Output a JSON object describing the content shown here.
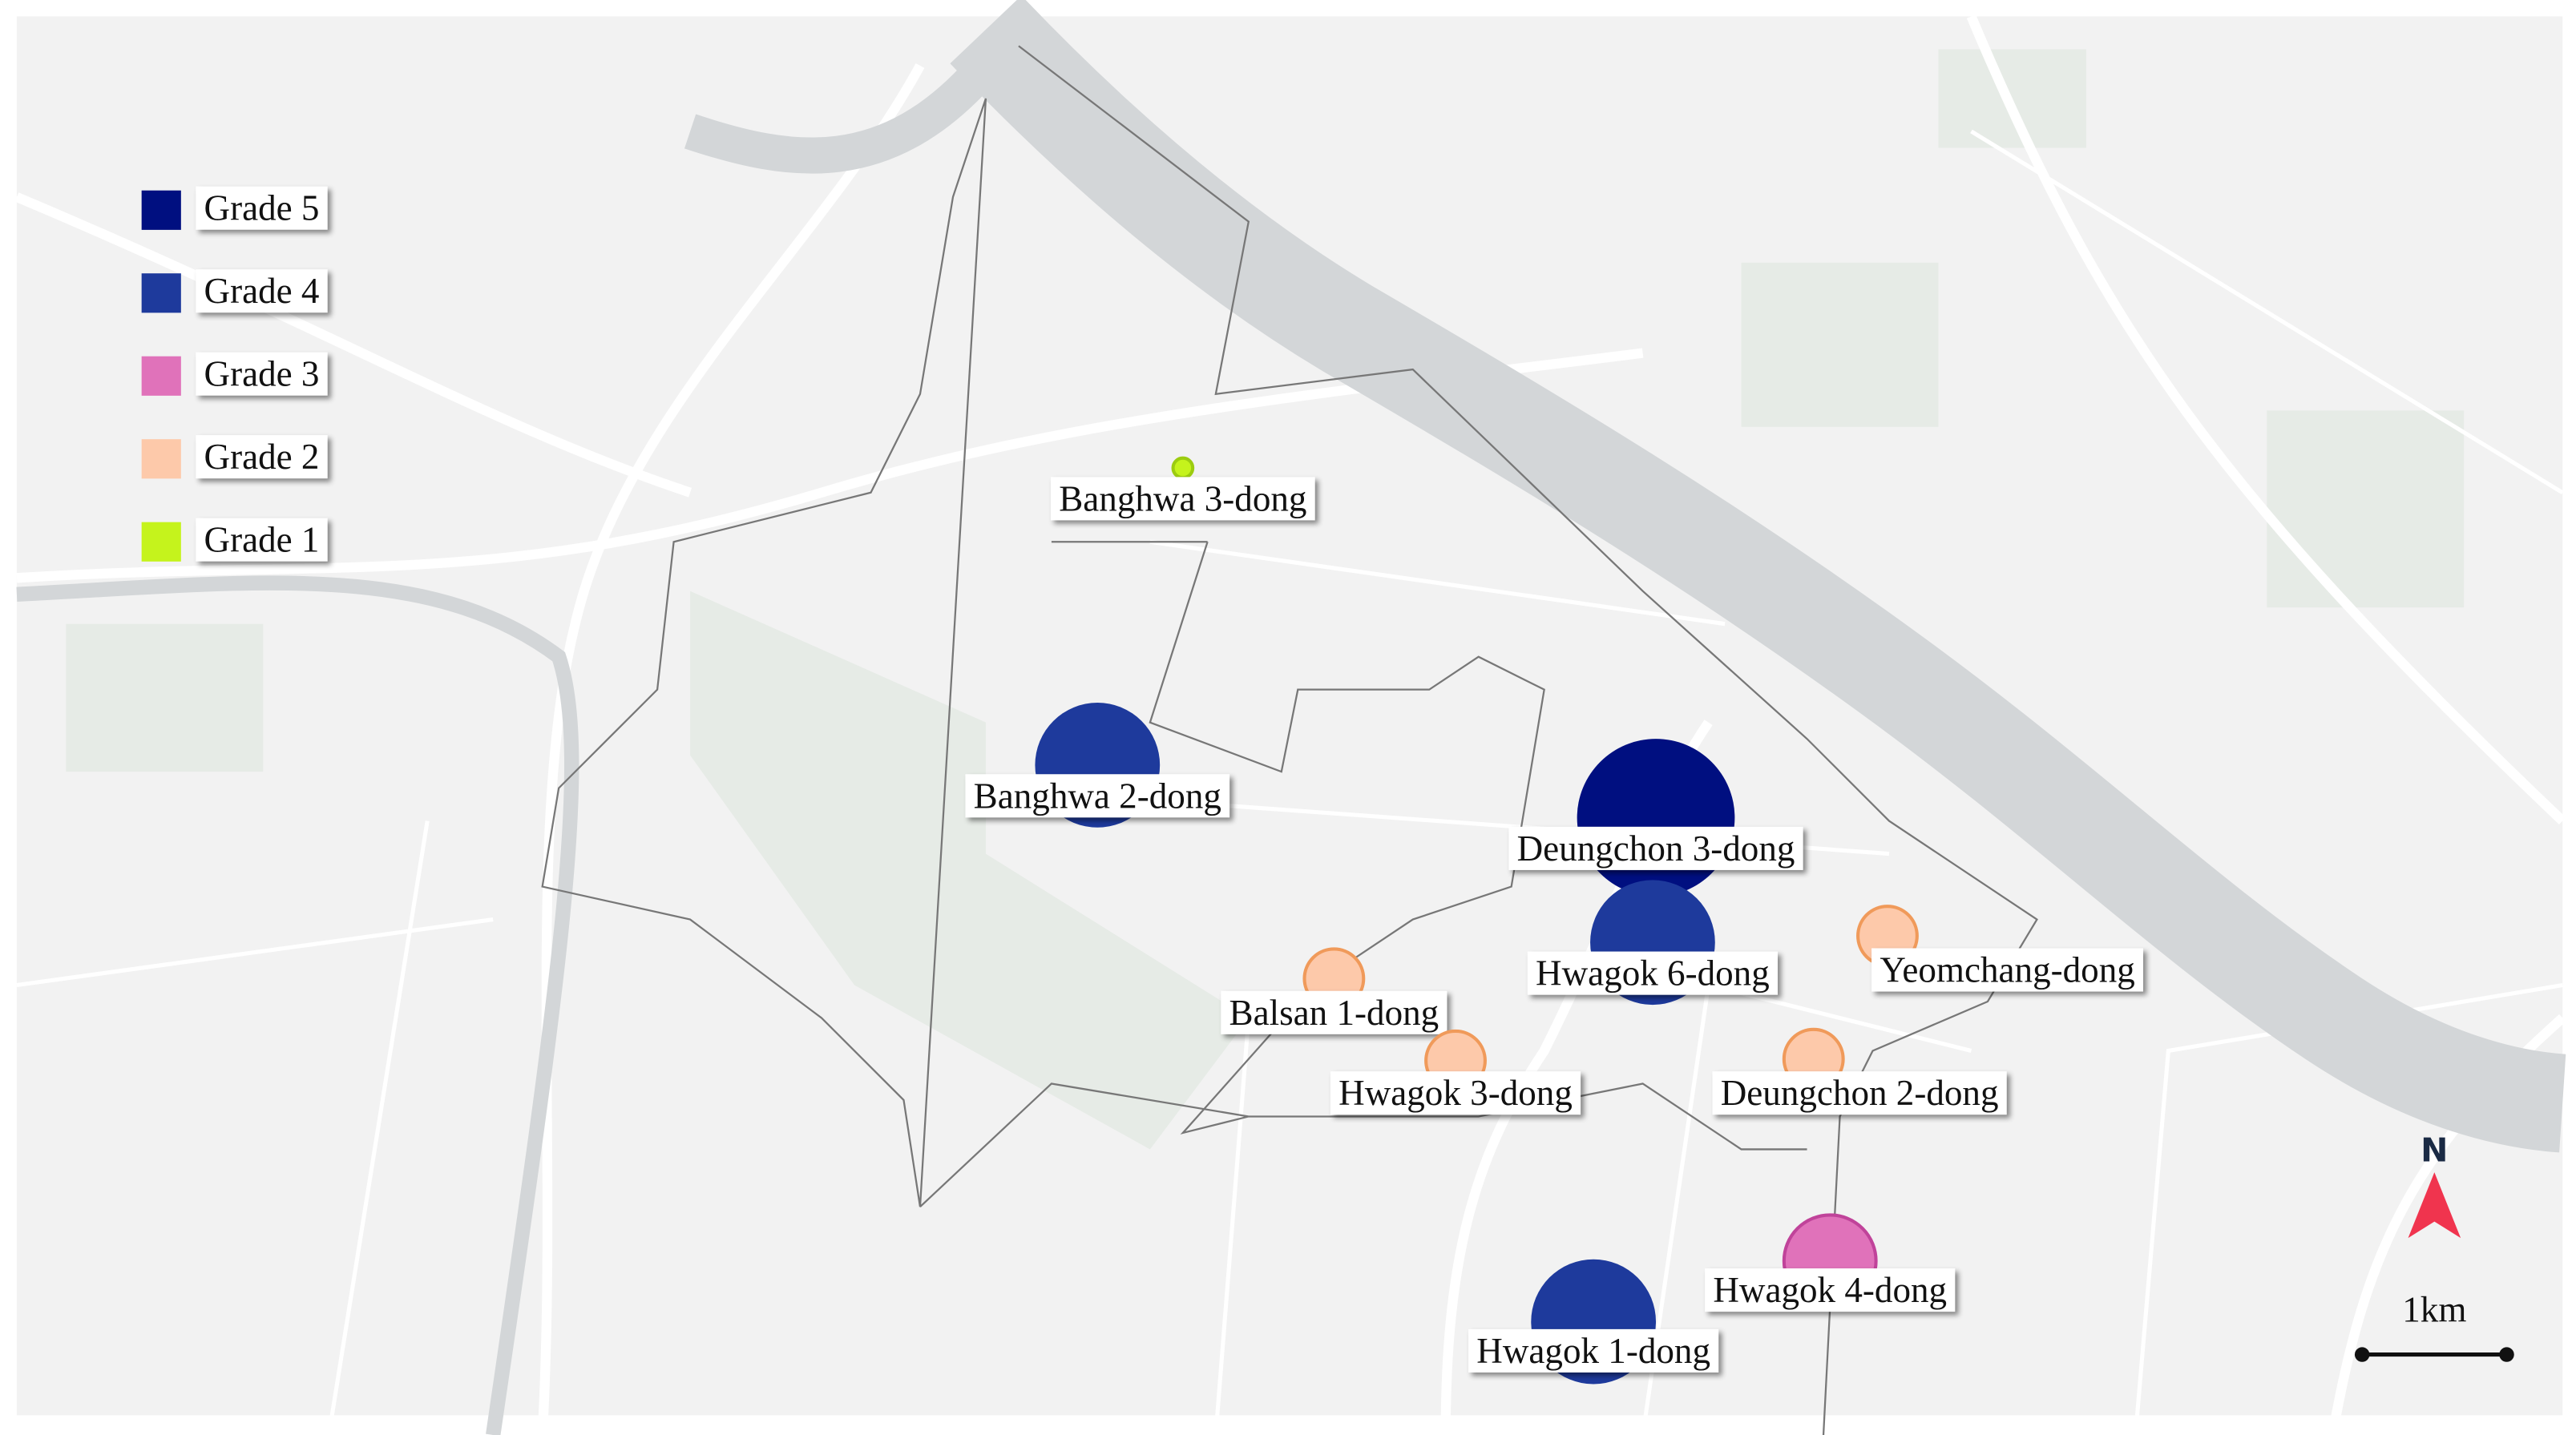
{
  "legend": [
    {
      "label": "Grade 5",
      "color": "#000f80"
    },
    {
      "label": "Grade 4",
      "color": "#1e3a9c"
    },
    {
      "label": "Grade 3",
      "color": "#e072ba"
    },
    {
      "label": "Grade 2",
      "color": "#fdc9aa"
    },
    {
      "label": "Grade 1",
      "color": "#c5f31c"
    }
  ],
  "places": [
    {
      "name": "Banghwa 3-dong"
    },
    {
      "name": "Banghwa 2-dong"
    },
    {
      "name": "Deungchon 3-dong"
    },
    {
      "name": "Hwagok 6-dong"
    },
    {
      "name": "Yeomchang-dong"
    },
    {
      "name": "Balsan 1-dong"
    },
    {
      "name": "Hwagok 3-dong"
    },
    {
      "name": "Deungchon 2-dong"
    },
    {
      "name": "Hwagok 4-dong"
    },
    {
      "name": "Hwagok 1-dong"
    }
  ],
  "north": "N",
  "scale": "1km"
}
